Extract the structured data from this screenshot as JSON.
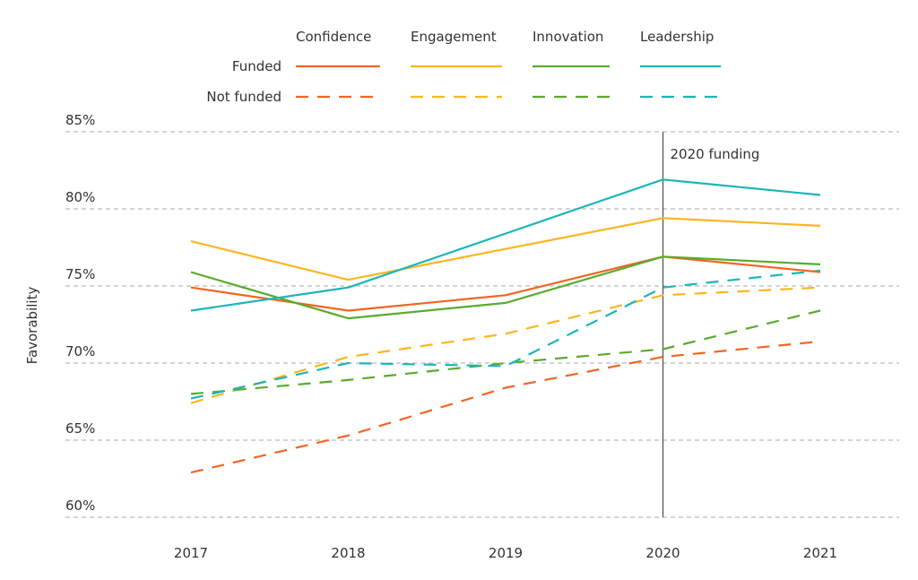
{
  "chart_data": {
    "type": "line",
    "title": "",
    "xlabel": "",
    "ylabel": "Favorability",
    "x": [
      "2017",
      "2018",
      "2019",
      "2020",
      "2021"
    ],
    "ylim": [
      60,
      85
    ],
    "yticks": [
      85,
      80,
      75,
      70,
      65,
      60
    ],
    "ytick_labels": [
      "85%",
      "80%",
      "75%",
      "70%",
      "65%",
      "60%"
    ],
    "grid": true,
    "legend_placement": "top",
    "legend": {
      "categories": [
        "Confidence",
        "Engagement",
        "Innovation",
        "Leadership"
      ],
      "groups": [
        "Funded",
        "Not funded"
      ]
    },
    "annotation": {
      "label": "2020 funding",
      "x": "2020"
    },
    "colors": {
      "Confidence": "#f26522",
      "Engagement": "#fbb61e",
      "Innovation": "#5aab2c",
      "Leadership": "#1bb5b9",
      "grid": "#aaaaaa",
      "annotation_line": "#555555"
    },
    "series": [
      {
        "name": "Confidence - Funded",
        "category": "Confidence",
        "group": "Funded",
        "values": [
          74.9,
          73.4,
          74.4,
          76.9,
          75.9
        ]
      },
      {
        "name": "Engagement - Funded",
        "category": "Engagement",
        "group": "Funded",
        "values": [
          77.9,
          75.4,
          77.4,
          79.4,
          78.9
        ]
      },
      {
        "name": "Innovation - Funded",
        "category": "Innovation",
        "group": "Funded",
        "values": [
          75.9,
          72.9,
          73.9,
          76.9,
          76.4
        ]
      },
      {
        "name": "Leadership - Funded",
        "category": "Leadership",
        "group": "Funded",
        "values": [
          73.4,
          74.9,
          78.4,
          81.9,
          80.9
        ]
      },
      {
        "name": "Confidence - Not funded",
        "category": "Confidence",
        "group": "Not funded",
        "values": [
          62.9,
          65.3,
          68.4,
          70.4,
          71.4
        ]
      },
      {
        "name": "Engagement - Not funded",
        "category": "Engagement",
        "group": "Not funded",
        "values": [
          67.4,
          70.4,
          71.9,
          74.4,
          74.9
        ]
      },
      {
        "name": "Innovation - Not funded",
        "category": "Innovation",
        "group": "Not funded",
        "values": [
          68.0,
          68.9,
          70.0,
          70.9,
          73.4
        ]
      },
      {
        "name": "Leadership - Not funded",
        "category": "Leadership",
        "group": "Not funded",
        "values": [
          67.7,
          70.0,
          69.8,
          74.9,
          76.0
        ]
      }
    ]
  }
}
